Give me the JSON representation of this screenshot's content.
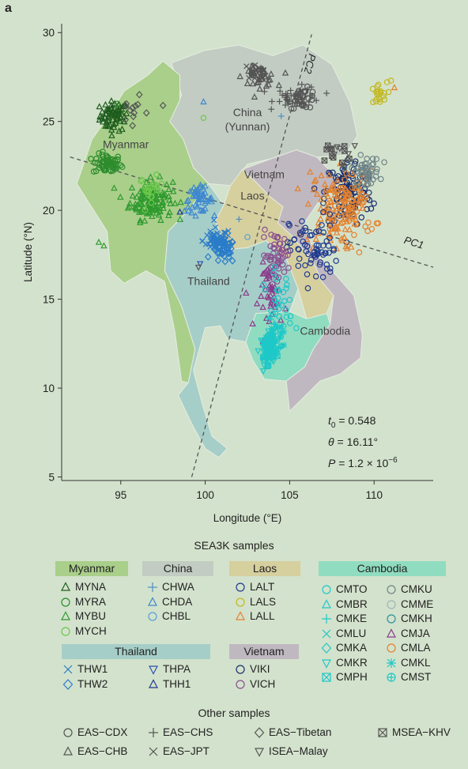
{
  "panel_label": "a",
  "colors": {
    "background": "#d3e2cc",
    "myanmar": "#a9cf8a",
    "china": "#c2ccc3",
    "laos": "#d6cf9e",
    "cambodia": "#90dcc0",
    "thailand": "#a6cec8",
    "vietnam": "#c0b8c0"
  },
  "chart_data": {
    "type": "scatter",
    "title": "",
    "xlabel": "Longitude (°E)",
    "ylabel": "Latitude (°N)",
    "xlim": [
      91.5,
      113.5
    ],
    "ylim": [
      4.8,
      30.5
    ],
    "xticks": [
      95,
      100,
      105,
      110
    ],
    "yticks": [
      5,
      10,
      15,
      20,
      25,
      30
    ],
    "grid": false,
    "axis_lines": [
      {
        "label": "PC1",
        "from": [
          92,
          23
        ],
        "to": [
          113.5,
          16.8
        ]
      },
      {
        "label": "PC2",
        "from": [
          99.2,
          5.0
        ],
        "to": [
          106.3,
          29.9
        ]
      }
    ],
    "region_labels": [
      {
        "text": "China",
        "lon": 102.5,
        "lat": 25.3
      },
      {
        "text": "(Yunnan)",
        "lon": 102.5,
        "lat": 24.5
      },
      {
        "text": "Myanmar",
        "lon": 95.3,
        "lat": 23.5
      },
      {
        "text": "Vietnam",
        "lon": 103.5,
        "lat": 21.8
      },
      {
        "text": "Laos",
        "lon": 102.8,
        "lat": 20.6
      },
      {
        "text": "Thailand",
        "lon": 100.2,
        "lat": 15.8
      },
      {
        "text": "Cambodia",
        "lon": 107.1,
        "lat": 13.0
      }
    ],
    "annotation": {
      "t0_label": "t",
      "t0_sub": "0",
      "t0_value": " = 0.548",
      "theta_label": "θ",
      "theta_value": " = 16.11°",
      "p_label": "P",
      "p_value": " = 1.2 × 10",
      "p_exp": "−6"
    },
    "clusters": [
      {
        "code": "MYNA",
        "lon": 94.6,
        "lat": 25.3,
        "slon": 0.6,
        "slat": 0.6,
        "n": 70
      },
      {
        "code": "MYRA",
        "lon": 94.2,
        "lat": 22.6,
        "slon": 0.6,
        "slat": 0.4,
        "n": 60
      },
      {
        "code": "MYBU",
        "lon": 96.8,
        "lat": 20.6,
        "slon": 0.9,
        "slat": 0.8,
        "n": 130
      },
      {
        "code": "MYCH",
        "lon": 96.8,
        "lat": 21.2,
        "slon": 0.5,
        "slat": 0.5,
        "n": 25
      },
      {
        "code": "CHDA",
        "lon": 99.6,
        "lat": 20.6,
        "slon": 0.6,
        "slat": 0.5,
        "n": 50
      },
      {
        "code": "THW1",
        "lon": 100.7,
        "lat": 18.3,
        "slon": 0.6,
        "slat": 0.5,
        "n": 60
      },
      {
        "code": "THW2",
        "lon": 101.1,
        "lat": 17.7,
        "slon": 0.5,
        "slat": 0.5,
        "n": 40
      },
      {
        "code": "EAS-CHS",
        "lon": 105.5,
        "lat": 26.4,
        "slon": 1.0,
        "slat": 0.4,
        "n": 40
      },
      {
        "code": "EAS-CDX",
        "lon": 105.8,
        "lat": 26.3,
        "slon": 0.6,
        "slat": 0.4,
        "n": 30
      },
      {
        "code": "EAS-CHB",
        "lon": 103.2,
        "lat": 27.5,
        "slon": 0.7,
        "slat": 0.4,
        "n": 35
      },
      {
        "code": "EAS-JPT",
        "lon": 103.0,
        "lat": 27.8,
        "slon": 0.5,
        "slat": 0.3,
        "n": 25
      },
      {
        "code": "LALS",
        "lon": 110.2,
        "lat": 26.5,
        "slon": 0.4,
        "slat": 0.5,
        "n": 20
      },
      {
        "code": "VIKI",
        "lon": 108.5,
        "lat": 21.0,
        "slon": 1.0,
        "slat": 1.4,
        "n": 120
      },
      {
        "code": "LALL",
        "lon": 107.5,
        "lat": 20.0,
        "slon": 1.1,
        "slat": 1.6,
        "n": 100
      },
      {
        "code": "LALT",
        "lon": 106.4,
        "lat": 17.8,
        "slon": 1.0,
        "slat": 1.4,
        "n": 70
      },
      {
        "code": "CMLA",
        "lon": 108.8,
        "lat": 20.2,
        "slon": 0.9,
        "slat": 1.4,
        "n": 60
      },
      {
        "code": "CMKU",
        "lon": 109.5,
        "lat": 22.2,
        "slon": 0.6,
        "slat": 0.6,
        "n": 50
      },
      {
        "code": "VICH",
        "lon": 104.2,
        "lat": 17.5,
        "slon": 0.6,
        "slat": 0.9,
        "n": 50
      },
      {
        "code": "CMJA",
        "lon": 104.0,
        "lat": 15.2,
        "slon": 0.6,
        "slat": 1.3,
        "n": 45
      },
      {
        "code": "CMTO",
        "lon": 104.3,
        "lat": 14.5,
        "slon": 0.6,
        "slat": 1.5,
        "n": 40
      },
      {
        "code": "CMKR",
        "lon": 103.8,
        "lat": 12.2,
        "slon": 0.4,
        "slat": 0.6,
        "n": 40
      },
      {
        "code": "CMPH",
        "lon": 103.7,
        "lat": 11.9,
        "slon": 0.3,
        "slat": 0.4,
        "n": 20
      },
      {
        "code": "CMKL",
        "lon": 104.1,
        "lat": 13.0,
        "slon": 0.4,
        "slat": 0.6,
        "n": 20
      },
      {
        "code": "CMST",
        "lon": 103.9,
        "lat": 12.6,
        "slon": 0.3,
        "slat": 0.5,
        "n": 20
      },
      {
        "code": "EAS-Tibetan",
        "lon": 95.7,
        "lat": 25.6,
        "slon": 0.5,
        "slat": 0.5,
        "n": 12
      },
      {
        "code": "MSEA-KHV",
        "lon": 107.6,
        "lat": 23.2,
        "slon": 0.8,
        "slat": 0.6,
        "n": 10
      },
      {
        "code": "ISEA-Malay",
        "lon": 108.0,
        "lat": 23.5,
        "slon": 0.9,
        "slat": 0.6,
        "n": 8
      }
    ],
    "singles": [
      {
        "code": "THPA",
        "lon": 99.7,
        "lat": 17.0
      },
      {
        "code": "THH1",
        "lon": 98.5,
        "lat": 19.9
      },
      {
        "code": "CHWA",
        "lon": 102.0,
        "lat": 19.5
      },
      {
        "code": "CHBL",
        "lon": 102.5,
        "lat": 18.5
      },
      {
        "code": "CHDA",
        "lon": 99.9,
        "lat": 26.1
      },
      {
        "code": "MYCH",
        "lon": 99.9,
        "lat": 25.2
      },
      {
        "code": "EAS-Tibetan",
        "lon": 97.5,
        "lat": 25.9
      },
      {
        "code": "MYBU",
        "lon": 93.7,
        "lat": 18.2
      },
      {
        "code": "MYBU",
        "lon": 94.0,
        "lat": 18.0
      },
      {
        "code": "ISEA-Malay",
        "lon": 99.6,
        "lat": 16.8
      },
      {
        "code": "CHWA",
        "lon": 104.5,
        "lat": 25.3
      },
      {
        "code": "MYRA",
        "lon": 94.8,
        "lat": 26.0
      },
      {
        "code": "LALS",
        "lon": 111.0,
        "lat": 27.3
      },
      {
        "code": "LALL",
        "lon": 111.2,
        "lat": 26.9
      }
    ]
  },
  "legend": {
    "title": "SEA3K samples",
    "groups": [
      {
        "name": "Myanmar",
        "color": "#a9cf8a",
        "items": [
          {
            "code": "MYNA",
            "marker": "triangle",
            "color": "#1e5c1e"
          },
          {
            "code": "MYRA",
            "marker": "circle",
            "color": "#2d8c2d"
          },
          {
            "code": "MYBU",
            "marker": "triangle",
            "color": "#2f9a2f"
          },
          {
            "code": "MYCH",
            "marker": "circle",
            "color": "#6cc84c"
          }
        ]
      },
      {
        "name": "China",
        "color": "#c2ccc3",
        "items": [
          {
            "code": "CHWA",
            "marker": "plus",
            "color": "#4b8fc4"
          },
          {
            "code": "CHDA",
            "marker": "triangle",
            "color": "#3e88d0"
          },
          {
            "code": "CHBL",
            "marker": "circle",
            "color": "#5a9fd6"
          }
        ]
      },
      {
        "name": "Laos",
        "color": "#d6cf9e",
        "items": [
          {
            "code": "LALT",
            "marker": "circle",
            "color": "#1f3a8f"
          },
          {
            "code": "LALS",
            "marker": "circle",
            "color": "#c2b820"
          },
          {
            "code": "LALL",
            "marker": "triangle",
            "color": "#e3812e"
          }
        ]
      },
      {
        "name": "Cambodia",
        "color": "#90dcc0",
        "items": [
          {
            "code": "CMTO",
            "marker": "circle",
            "color": "#1ec8c8"
          },
          {
            "code": "CMBR",
            "marker": "triangle",
            "color": "#1ec8c8"
          },
          {
            "code": "CMKE",
            "marker": "plus",
            "color": "#1ec8c8"
          },
          {
            "code": "CMLU",
            "marker": "cross",
            "color": "#1ec8c8"
          },
          {
            "code": "CMKA",
            "marker": "diamond",
            "color": "#1ec8c8"
          },
          {
            "code": "CMKR",
            "marker": "tri-down",
            "color": "#1ec8c8"
          },
          {
            "code": "CMPH",
            "marker": "square-x",
            "color": "#1ec8c8"
          },
          {
            "code": "CMKU",
            "marker": "circle",
            "color": "#6f8488"
          },
          {
            "code": "CMME",
            "marker": "circle",
            "color": "#9fb5b5"
          },
          {
            "code": "CMKH",
            "marker": "circle",
            "color": "#2b8f9a"
          },
          {
            "code": "CMJA",
            "marker": "triangle",
            "color": "#8a3a8a"
          },
          {
            "code": "CMLA",
            "marker": "circle",
            "color": "#e3812e"
          },
          {
            "code": "CMKL",
            "marker": "asterisk",
            "color": "#1ec8c8"
          },
          {
            "code": "CMST",
            "marker": "circle-plus",
            "color": "#1ec8c8"
          }
        ]
      },
      {
        "name": "Thailand",
        "color": "#a6cec8",
        "items": [
          {
            "code": "THW1",
            "marker": "cross",
            "color": "#2a7cc9"
          },
          {
            "code": "THW2",
            "marker": "diamond",
            "color": "#2a7cc9"
          },
          {
            "code": "THPA",
            "marker": "tri-down",
            "color": "#2a4fb0"
          },
          {
            "code": "THH1",
            "marker": "triangle",
            "color": "#1f3a8f"
          }
        ]
      },
      {
        "name": "Vietnam",
        "color": "#c0b8c0",
        "items": [
          {
            "code": "VIKI",
            "marker": "circle",
            "color": "#1a2f70"
          },
          {
            "code": "VICH",
            "marker": "circle",
            "color": "#8a4f8f"
          }
        ]
      }
    ],
    "other_title": "Other samples",
    "other": [
      {
        "code": "EAS−CDX",
        "key": "EAS-CDX",
        "marker": "circle",
        "color": "#555555"
      },
      {
        "code": "EAS−CHS",
        "key": "EAS-CHS",
        "marker": "plus",
        "color": "#555555"
      },
      {
        "code": "EAS−Tibetan",
        "key": "EAS-Tibetan",
        "marker": "diamond",
        "color": "#555555"
      },
      {
        "code": "MSEA−KHV",
        "key": "MSEA-KHV",
        "marker": "square-x",
        "color": "#555555"
      },
      {
        "code": "EAS−CHB",
        "key": "EAS-CHB",
        "marker": "triangle",
        "color": "#555555"
      },
      {
        "code": "EAS−JPT",
        "key": "EAS-JPT",
        "marker": "cross",
        "color": "#555555"
      },
      {
        "code": "ISEA−Malay",
        "key": "ISEA-Malay",
        "marker": "tri-down",
        "color": "#555555"
      }
    ]
  }
}
